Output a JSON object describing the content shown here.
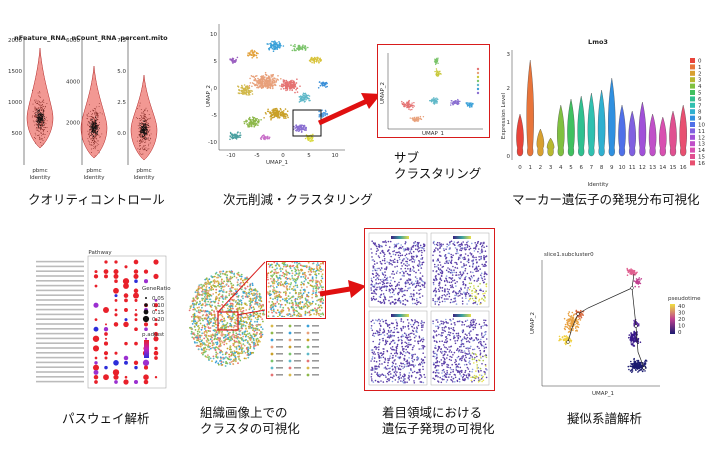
{
  "panels": {
    "qc": {
      "caption": "クオリティコントロール",
      "violins": [
        {
          "title": "nFeature_RNA",
          "ticks": [
            "2000",
            "1500",
            "1000",
            "500"
          ],
          "xtick": "pbmc",
          "xlabel": "Identity"
        },
        {
          "title": "nCount_RNA",
          "ticks": [
            "6000",
            "4000",
            "2000"
          ],
          "xtick": "pbmc",
          "xlabel": "Identity"
        },
        {
          "title": "percent.mito",
          "ticks": [
            "7.5",
            "5.0",
            "2.5",
            "0.0"
          ],
          "xtick": "pbmc",
          "xlabel": "Identity"
        }
      ]
    },
    "umap": {
      "caption": "次元削減・クラスタリング",
      "xlabel": "UMAP_1",
      "ylabel": "UMAP_2",
      "xticks": [
        "-10",
        "-5",
        "0",
        "5",
        "10"
      ],
      "yticks": [
        "10",
        "5",
        "0",
        "-5",
        "-10"
      ]
    },
    "subcluster": {
      "caption_line1": "サブ",
      "caption_line2": "クラスタリング",
      "xlabel": "UMAP_1",
      "ylabel": "UMAP_2"
    },
    "marker": {
      "caption": "マーカー遺伝子の発現分布可視化",
      "title": "Lmo3",
      "ylabel": "Expression Level",
      "xlabel": "Identity",
      "yticks": [
        "3",
        "2",
        "1",
        "0"
      ],
      "legend": [
        "0",
        "1",
        "2",
        "3",
        "4",
        "5",
        "6",
        "7",
        "8",
        "9",
        "10",
        "11",
        "12",
        "13",
        "14",
        "15",
        "16"
      ]
    },
    "pathway": {
      "caption": "パスウェイ解析",
      "title": "Pathway",
      "legend_title1": "GeneRatio",
      "legend_title2": "p.adjust",
      "ratio_labels": [
        "0.05",
        "0.10",
        "0.15",
        "0.20"
      ]
    },
    "tissue": {
      "caption_line1": "組織画像上での",
      "caption_line2": "クラスタの可視化"
    },
    "spatial_expr": {
      "caption_line1": "着目領域における",
      "caption_line2": "遺伝子発現の可視化"
    },
    "pseudotime": {
      "caption": "擬似系譜解析",
      "title": "slice1.subcluster0",
      "legend_title": "pseudotime",
      "legend_ticks": [
        "40",
        "30",
        "20",
        "10",
        "0"
      ],
      "xlabel": "UMAP_1",
      "ylabel": "UMAP_2"
    }
  },
  "colors": {
    "highlight_red": "#d81b1b",
    "violin_red": "#e8443a",
    "dot_red": "#e8202a",
    "dot_blue": "#2d2dd9",
    "spatial_purple": "#5b3fa8",
    "spatial_yellow": "#e8e04a"
  }
}
